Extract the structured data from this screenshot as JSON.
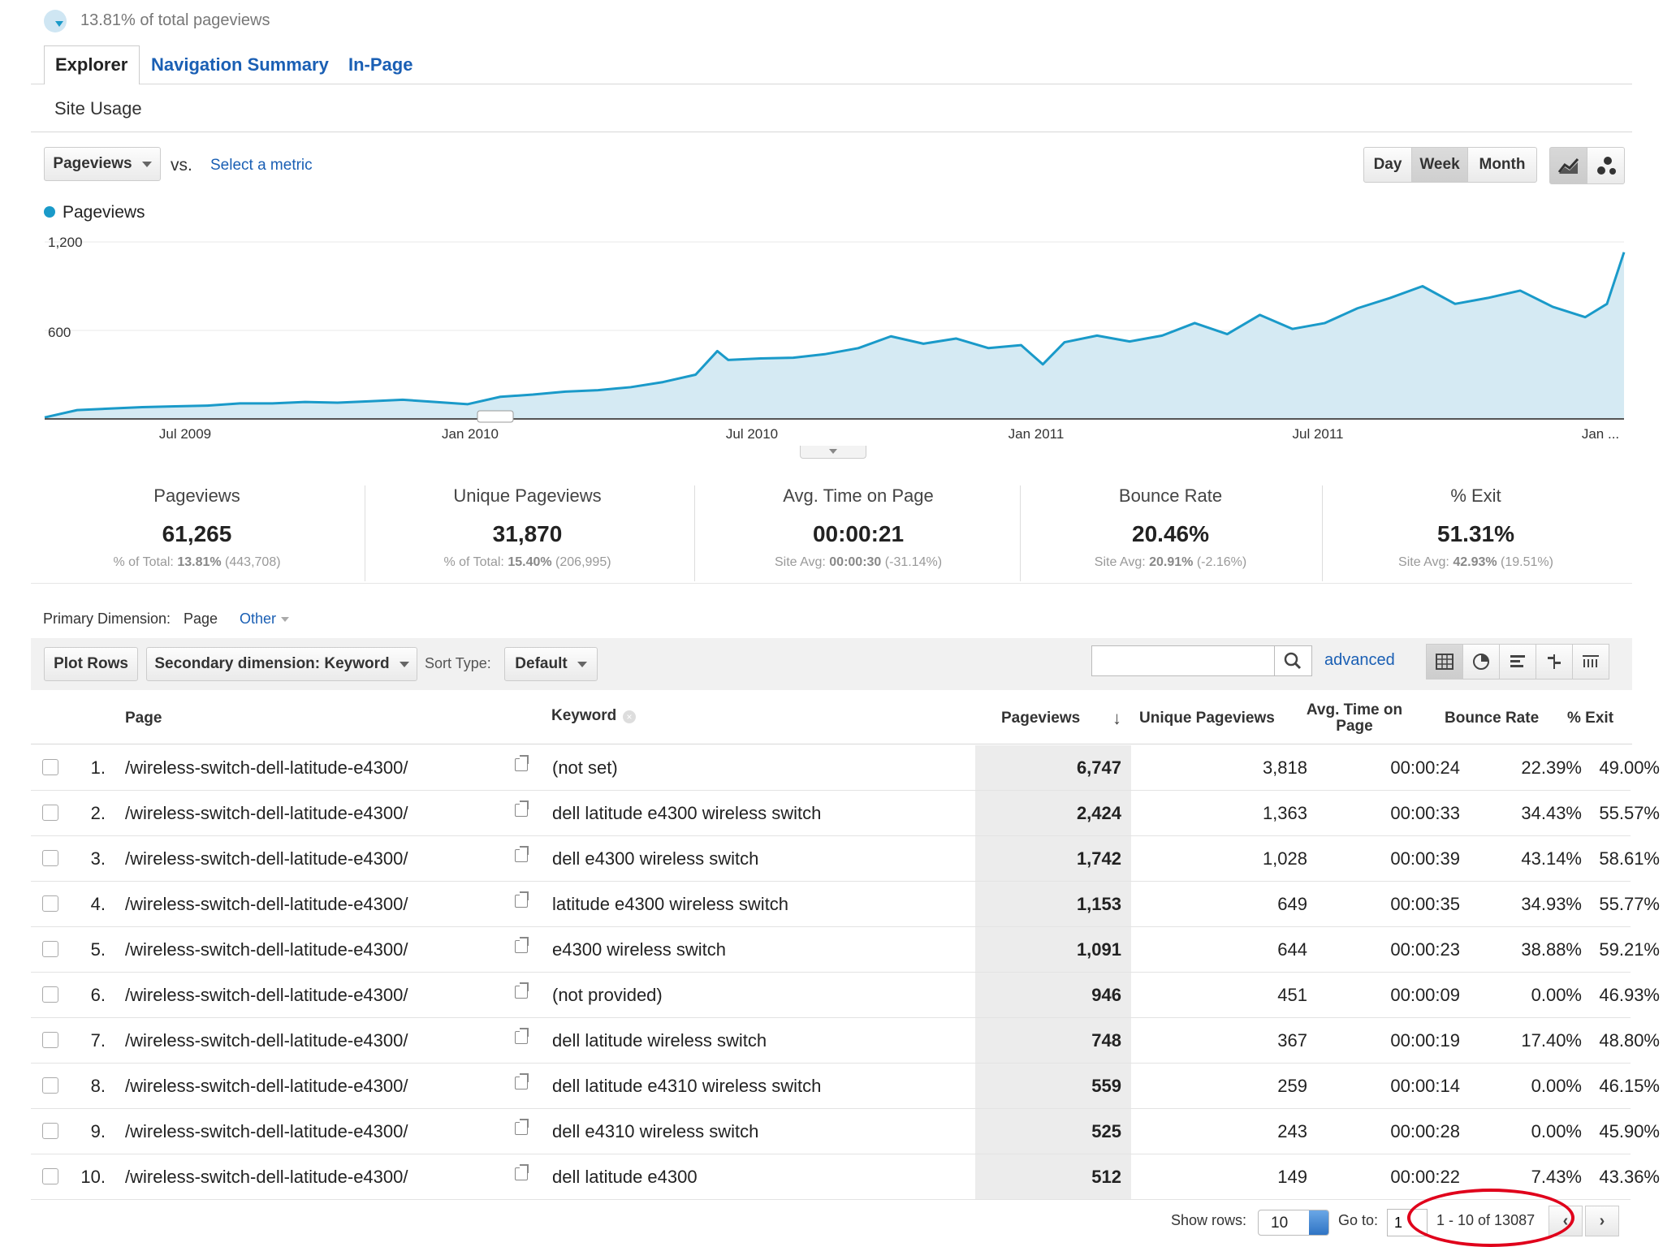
{
  "header": {
    "total_text": "13.81% of total pageviews"
  },
  "tabs": [
    {
      "label": "Explorer",
      "active": true
    },
    {
      "label": "Navigation Summary",
      "active": false
    },
    {
      "label": "In-Page",
      "active": false
    }
  ],
  "subtab": "Site Usage",
  "toolbar": {
    "metric_select": "Pageviews",
    "vs": "vs.",
    "select_metric": "Select a metric",
    "period_buttons": [
      "Day",
      "Week",
      "Month"
    ],
    "active_period": "Week"
  },
  "chart_data": {
    "type": "area",
    "series": [
      {
        "name": "Pageviews"
      }
    ],
    "ytick_labels": [
      "1,200",
      "600"
    ],
    "ylim": [
      0,
      1200
    ],
    "x_labels": [
      "Jul 2009",
      "Jan 2010",
      "Jul 2010",
      "Jan 2011",
      "Jul 2011",
      "Jan ..."
    ],
    "x_range": [
      "2009-04-01",
      "2012-01-15"
    ],
    "x": [
      "2009-04-01",
      "2009-04-22",
      "2009-05-13",
      "2009-06-03",
      "2009-06-24",
      "2009-07-15",
      "2009-08-05",
      "2009-08-26",
      "2009-09-16",
      "2009-10-07",
      "2009-10-28",
      "2009-11-18",
      "2009-12-09",
      "2009-12-30",
      "2010-01-20",
      "2010-02-10",
      "2010-03-03",
      "2010-03-24",
      "2010-04-14",
      "2010-05-05",
      "2010-05-26",
      "2010-06-09",
      "2010-06-16",
      "2010-07-07",
      "2010-07-28",
      "2010-08-18",
      "2010-09-08",
      "2010-09-29",
      "2010-10-20",
      "2010-11-10",
      "2010-12-01",
      "2010-12-22",
      "2011-01-05",
      "2011-01-19",
      "2011-02-09",
      "2011-03-02",
      "2011-03-23",
      "2011-04-13",
      "2011-05-04",
      "2011-05-25",
      "2011-06-15",
      "2011-07-06",
      "2011-07-27",
      "2011-08-17",
      "2011-09-07",
      "2011-09-28",
      "2011-10-19",
      "2011-11-09",
      "2011-11-30",
      "2011-12-21",
      "2012-01-04",
      "2012-01-15"
    ],
    "y": [
      10,
      60,
      70,
      80,
      85,
      90,
      105,
      105,
      115,
      110,
      120,
      130,
      115,
      100,
      150,
      165,
      185,
      195,
      215,
      250,
      300,
      460,
      400,
      410,
      415,
      440,
      480,
      560,
      510,
      545,
      480,
      500,
      370,
      520,
      565,
      525,
      565,
      650,
      575,
      705,
      610,
      650,
      750,
      820,
      900,
      780,
      820,
      870,
      760,
      690,
      780,
      1130
    ],
    "legend": "top-left",
    "grid": true
  },
  "metrics": [
    {
      "label": "Pageviews",
      "value": "61,265",
      "sub_prefix": "% of Total:",
      "sub_bold": "13.81%",
      "sub_rest": "(443,708)"
    },
    {
      "label": "Unique Pageviews",
      "value": "31,870",
      "sub_prefix": "% of Total:",
      "sub_bold": "15.40%",
      "sub_rest": "(206,995)"
    },
    {
      "label": "Avg. Time on Page",
      "value": "00:00:21",
      "sub_prefix": "Site Avg:",
      "sub_bold": "00:00:30",
      "sub_rest": "(-31.14%)"
    },
    {
      "label": "Bounce Rate",
      "value": "20.46%",
      "sub_prefix": "Site Avg:",
      "sub_bold": "20.91%",
      "sub_rest": "(-2.16%)"
    },
    {
      "label": "% Exit",
      "value": "51.31%",
      "sub_prefix": "Site Avg:",
      "sub_bold": "42.93%",
      "sub_rest": "(19.51%)"
    }
  ],
  "dimension": {
    "label": "Primary Dimension:",
    "page": "Page",
    "other": "Other"
  },
  "table_toolbar": {
    "plot_rows": "Plot Rows",
    "secondary": "Secondary dimension: Keyword",
    "sort_type_label": "Sort Type:",
    "sort_type": "Default",
    "search_placeholder": "",
    "advanced": "advanced"
  },
  "columns": {
    "page": "Page",
    "keyword": "Keyword",
    "pageviews": "Pageviews",
    "unique": "Unique Pageviews",
    "avg_time": "Avg. Time on Page",
    "bounce": "Bounce Rate",
    "exit": "% Exit"
  },
  "rows": [
    {
      "n": "1.",
      "page": "/wireless-switch-dell-latitude-e4300/",
      "keyword": "(not set)",
      "pv": "6,747",
      "upv": "3,818",
      "time": "00:00:24",
      "bounce": "22.39%",
      "exit": "49.00%"
    },
    {
      "n": "2.",
      "page": "/wireless-switch-dell-latitude-e4300/",
      "keyword": "dell latitude e4300 wireless switch",
      "pv": "2,424",
      "upv": "1,363",
      "time": "00:00:33",
      "bounce": "34.43%",
      "exit": "55.57%"
    },
    {
      "n": "3.",
      "page": "/wireless-switch-dell-latitude-e4300/",
      "keyword": "dell e4300 wireless switch",
      "pv": "1,742",
      "upv": "1,028",
      "time": "00:00:39",
      "bounce": "43.14%",
      "exit": "58.61%"
    },
    {
      "n": "4.",
      "page": "/wireless-switch-dell-latitude-e4300/",
      "keyword": "latitude e4300 wireless switch",
      "pv": "1,153",
      "upv": "649",
      "time": "00:00:35",
      "bounce": "34.93%",
      "exit": "55.77%"
    },
    {
      "n": "5.",
      "page": "/wireless-switch-dell-latitude-e4300/",
      "keyword": "e4300 wireless switch",
      "pv": "1,091",
      "upv": "644",
      "time": "00:00:23",
      "bounce": "38.88%",
      "exit": "59.21%"
    },
    {
      "n": "6.",
      "page": "/wireless-switch-dell-latitude-e4300/",
      "keyword": "(not provided)",
      "pv": "946",
      "upv": "451",
      "time": "00:00:09",
      "bounce": "0.00%",
      "exit": "46.93%"
    },
    {
      "n": "7.",
      "page": "/wireless-switch-dell-latitude-e4300/",
      "keyword": "dell latitude wireless switch",
      "pv": "748",
      "upv": "367",
      "time": "00:00:19",
      "bounce": "17.40%",
      "exit": "48.80%"
    },
    {
      "n": "8.",
      "page": "/wireless-switch-dell-latitude-e4300/",
      "keyword": "dell latitude e4310 wireless switch",
      "pv": "559",
      "upv": "259",
      "time": "00:00:14",
      "bounce": "0.00%",
      "exit": "46.15%"
    },
    {
      "n": "9.",
      "page": "/wireless-switch-dell-latitude-e4300/",
      "keyword": "dell e4310 wireless switch",
      "pv": "525",
      "upv": "243",
      "time": "00:00:28",
      "bounce": "0.00%",
      "exit": "45.90%"
    },
    {
      "n": "10.",
      "page": "/wireless-switch-dell-latitude-e4300/",
      "keyword": "dell latitude e4300",
      "pv": "512",
      "upv": "149",
      "time": "00:00:22",
      "bounce": "7.43%",
      "exit": "43.36%"
    }
  ],
  "footer": {
    "show_rows_label": "Show rows:",
    "show_rows": "10",
    "goto_label": "Go to:",
    "goto_value": "1",
    "range": "1 - 10 of 13087"
  },
  "colors": {
    "line": "#1a9ac9",
    "fill": "#d5eaf3",
    "link": "#1a5fb4",
    "annotation": "#e0001b"
  }
}
